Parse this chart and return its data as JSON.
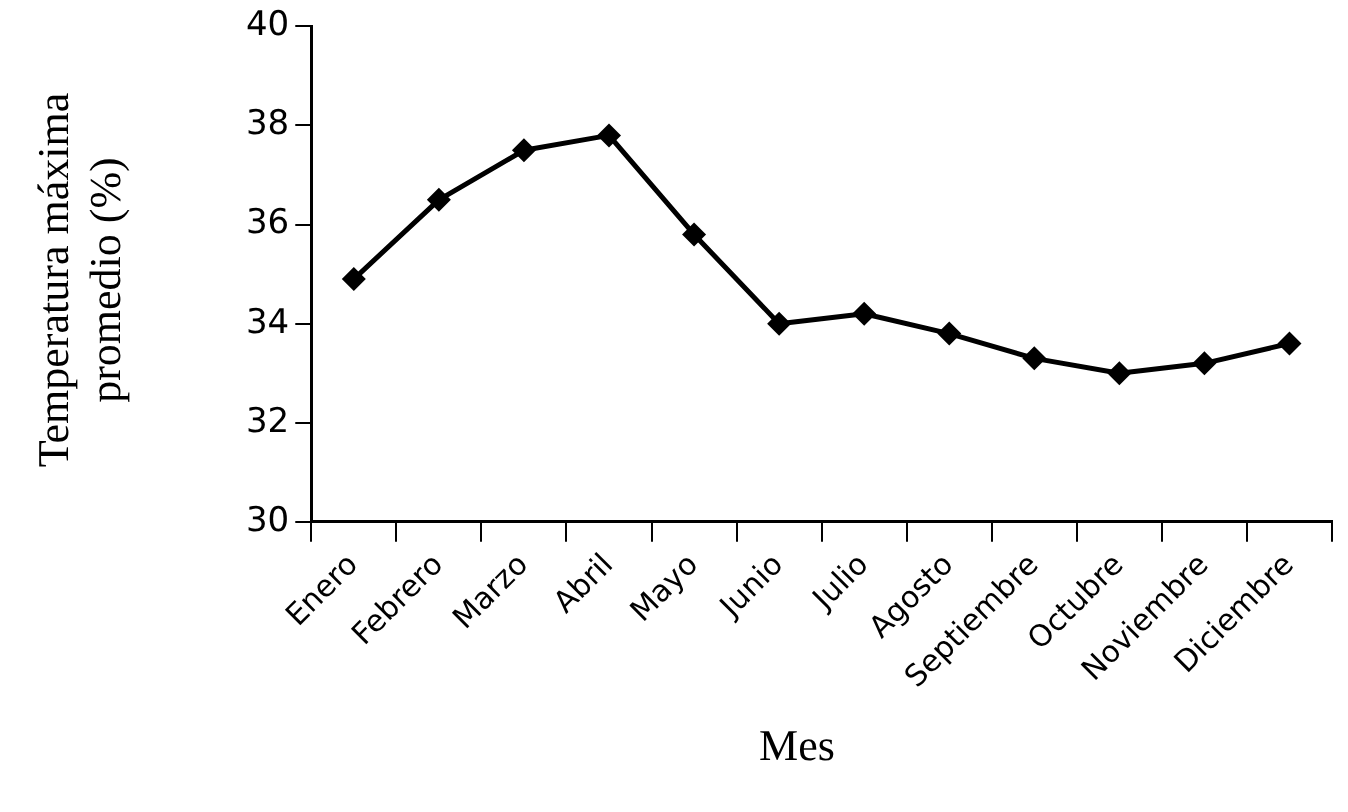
{
  "chart_data": {
    "type": "line",
    "xlabel": "Mes",
    "ylabel": "Temperatura máxima promedio (%)",
    "categories": [
      "Enero",
      "Febrero",
      "Marzo",
      "Abril",
      "Mayo",
      "Junio",
      "Julio",
      "Agosto",
      "Septiembre",
      "Octubre",
      "Noviembre",
      "Diciembre"
    ],
    "series": [
      {
        "color": "#000000",
        "values": [
          34.9,
          36.5,
          37.5,
          37.8,
          35.8,
          34.0,
          34.2,
          33.8,
          33.3,
          33.0,
          33.2,
          33.6
        ]
      }
    ],
    "ylim": [
      30,
      40
    ],
    "yticks": [
      30,
      32,
      34,
      36,
      38,
      40
    ],
    "grid": false,
    "legend": false,
    "marker": "diamond",
    "line_style": "solid"
  }
}
